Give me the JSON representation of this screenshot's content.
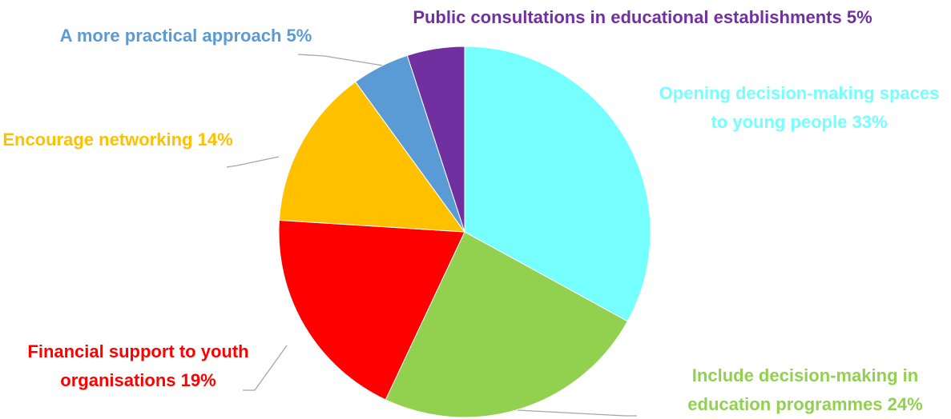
{
  "chart_data": {
    "type": "pie",
    "categories": [
      "Opening decision-making spaces to young people",
      "Include decision-making in education programmes",
      "Financial support to youth organisations",
      "Encourage networking",
      "A more practical approach",
      "Public consultations in educational establishments"
    ],
    "values": [
      33,
      24,
      19,
      14,
      5,
      5
    ],
    "value_labels": [
      "33%",
      "24%",
      "19%",
      "14%",
      "5%",
      "5%"
    ],
    "colors": [
      "#75ffff",
      "#92d050",
      "#ff0000",
      "#ffc000",
      "#5b9bd5",
      "#7030a0"
    ],
    "start_angle": 90,
    "direction": "clockwise"
  }
}
